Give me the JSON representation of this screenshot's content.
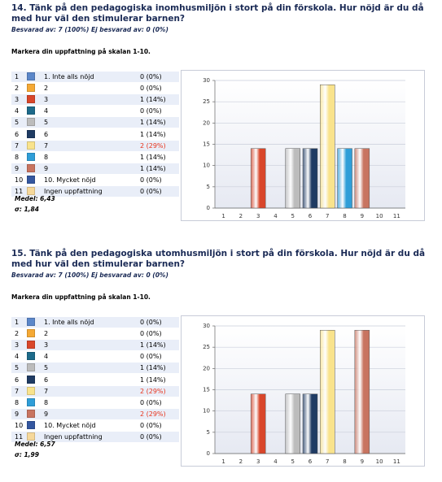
{
  "questions": [
    {
      "title": "14. Tänk på den pedagogiska inomhusmiljön i stort på din förskola. Hur nöjd är du då med hur väl den stimulerar barnen?",
      "answered": "Besvarad av: 7 (100%) Ej besvarad av: 0 (0%)",
      "instruction": "Markera din uppfattning på skalan 1-10.",
      "rows": [
        {
          "index": "1",
          "color": "#5b87c9",
          "label": "1. Inte alls nöjd",
          "result": "0 (0%)",
          "result_color": "#000000"
        },
        {
          "index": "2",
          "color": "#f5a935",
          "label": "2",
          "result": "0 (0%)",
          "result_color": "#000000"
        },
        {
          "index": "3",
          "color": "#d9462a",
          "label": "3",
          "result": "1 (14%)",
          "result_color": "#000000"
        },
        {
          "index": "4",
          "color": "#1d6a8a",
          "label": "4",
          "result": "0 (0%)",
          "result_color": "#000000"
        },
        {
          "index": "5",
          "color": "#bcbcbc",
          "label": "5",
          "result": "1 (14%)",
          "result_color": "#000000"
        },
        {
          "index": "6",
          "color": "#1f3b63",
          "label": "6",
          "result": "1 (14%)",
          "result_color": "#000000"
        },
        {
          "index": "7",
          "color": "#f9e38c",
          "label": "7",
          "result": "2 (29%)",
          "result_color": "#e8331c"
        },
        {
          "index": "8",
          "color": "#2f9ed8",
          "label": "8",
          "result": "1 (14%)",
          "result_color": "#000000"
        },
        {
          "index": "9",
          "color": "#c87460",
          "label": "9",
          "result": "1 (14%)",
          "result_color": "#000000"
        },
        {
          "index": "10",
          "color": "#3457a0",
          "label": "10. Mycket nöjd",
          "result": "0 (0%)",
          "result_color": "#000000"
        },
        {
          "index": "11",
          "color": "#f6d89a",
          "label": "Ingen uppfattning",
          "result": "0 (0%)",
          "result_color": "#000000"
        }
      ],
      "mean": "Medel: 6,43",
      "sd": "σ: 1,84",
      "chart": {
        "type": "bar",
        "categories": [
          1,
          2,
          3,
          4,
          5,
          6,
          7,
          8,
          9,
          10,
          11
        ],
        "values": [
          0,
          0,
          14,
          0,
          14,
          14,
          29,
          14,
          14,
          0,
          0
        ],
        "ylim": [
          0,
          30
        ],
        "yticks": [
          0,
          5,
          10,
          15,
          20,
          25,
          30
        ],
        "grid": true
      }
    },
    {
      "title": "15. Tänk på den pedagogiska utomhusmiljön i stort på din förskola. Hur nöjd är du då med hur väl den stimulerar barnen?",
      "answered": "Besvarad av: 7 (100%) Ej besvarad av: 0 (0%)",
      "instruction": "Markera din uppfattning på skalan 1-10.",
      "rows": [
        {
          "index": "1",
          "color": "#5b87c9",
          "label": "1. Inte alls nöjd",
          "result": "0 (0%)",
          "result_color": "#000000"
        },
        {
          "index": "2",
          "color": "#f5a935",
          "label": "2",
          "result": "0 (0%)",
          "result_color": "#000000"
        },
        {
          "index": "3",
          "color": "#d9462a",
          "label": "3",
          "result": "1 (14%)",
          "result_color": "#000000"
        },
        {
          "index": "4",
          "color": "#1d6a8a",
          "label": "4",
          "result": "0 (0%)",
          "result_color": "#000000"
        },
        {
          "index": "5",
          "color": "#bcbcbc",
          "label": "5",
          "result": "1 (14%)",
          "result_color": "#000000"
        },
        {
          "index": "6",
          "color": "#1f3b63",
          "label": "6",
          "result": "1 (14%)",
          "result_color": "#000000"
        },
        {
          "index": "7",
          "color": "#f9e38c",
          "label": "7",
          "result": "2 (29%)",
          "result_color": "#e8331c"
        },
        {
          "index": "8",
          "color": "#2f9ed8",
          "label": "8",
          "result": "0 (0%)",
          "result_color": "#000000"
        },
        {
          "index": "9",
          "color": "#c87460",
          "label": "9",
          "result": "2 (29%)",
          "result_color": "#e8331c"
        },
        {
          "index": "10",
          "color": "#3457a0",
          "label": "10. Mycket nöjd",
          "result": "0 (0%)",
          "result_color": "#000000"
        },
        {
          "index": "11",
          "color": "#f6d89a",
          "label": "Ingen uppfattning",
          "result": "0 (0%)",
          "result_color": "#000000"
        }
      ],
      "mean": "Medel: 6,57",
      "sd": "σ: 1,99",
      "chart": {
        "type": "bar",
        "categories": [
          1,
          2,
          3,
          4,
          5,
          6,
          7,
          8,
          9,
          10,
          11
        ],
        "values": [
          0,
          0,
          14,
          0,
          14,
          14,
          29,
          0,
          29,
          0,
          0
        ],
        "ylim": [
          0,
          30
        ],
        "yticks": [
          0,
          5,
          10,
          15,
          20,
          25,
          30
        ],
        "grid": true
      }
    }
  ]
}
